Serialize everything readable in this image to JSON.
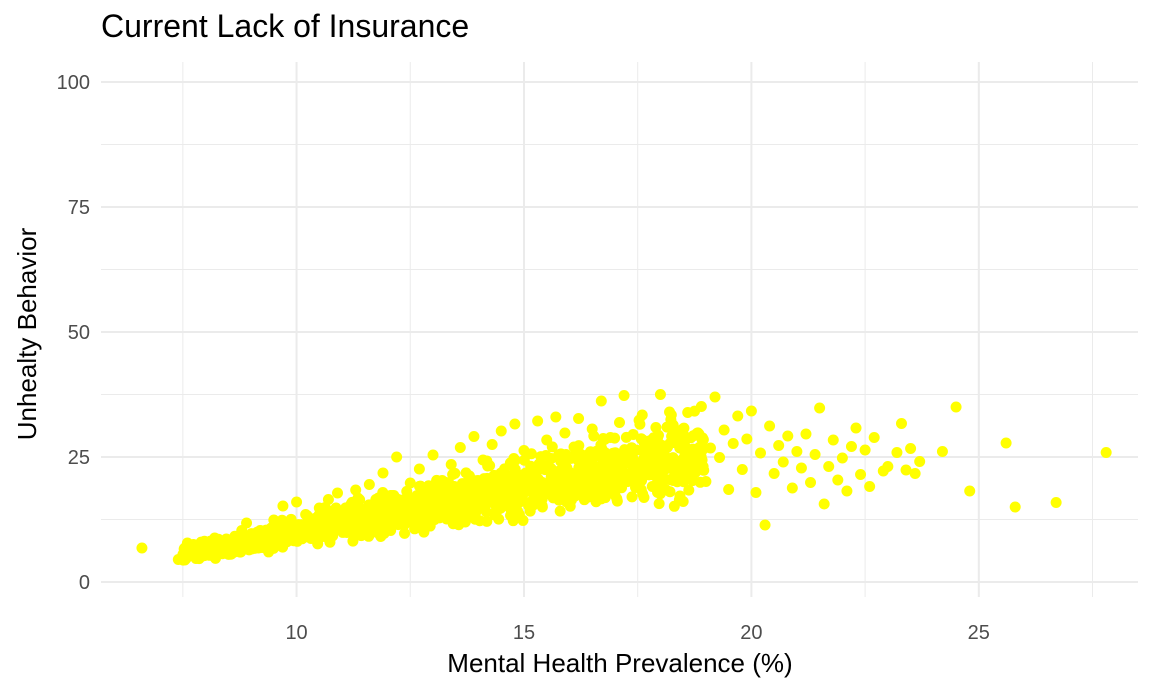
{
  "chart_data": {
    "type": "scatter",
    "title": "Current Lack of Insurance",
    "xlabel": "Mental Health Prevalence (%)",
    "ylabel": "Unhealty Behavior",
    "xlim": [
      5.7,
      28.5
    ],
    "ylim": [
      -3,
      104
    ],
    "x_ticks": [
      10,
      15,
      20,
      25
    ],
    "y_ticks": [
      0,
      25,
      50,
      75,
      100
    ],
    "grid": true,
    "legend": "none",
    "point_color": "#FFFF00",
    "grid_color": "#EBEBEB",
    "points": [
      [
        6.6,
        6.8
      ],
      [
        7.4,
        4.5
      ],
      [
        7.5,
        5.0
      ],
      [
        7.6,
        7.8
      ],
      [
        7.7,
        6.0
      ],
      [
        7.8,
        5.2
      ],
      [
        7.9,
        7.0
      ],
      [
        8.0,
        6.5
      ],
      [
        8.1,
        5.5
      ],
      [
        8.2,
        8.8
      ],
      [
        8.3,
        6.2
      ],
      [
        8.4,
        7.4
      ],
      [
        8.5,
        5.9
      ],
      [
        8.6,
        8.2
      ],
      [
        8.7,
        6.8
      ],
      [
        8.8,
        7.7
      ],
      [
        8.9,
        11.8
      ],
      [
        9.0,
        9.5
      ],
      [
        9.1,
        7.1
      ],
      [
        9.2,
        10.3
      ],
      [
        9.3,
        8.4
      ],
      [
        9.4,
        9.9
      ],
      [
        9.5,
        12.4
      ],
      [
        9.6,
        8.9
      ],
      [
        9.7,
        15.2
      ],
      [
        9.8,
        10.6
      ],
      [
        9.9,
        9.1
      ],
      [
        10.0,
        16.0
      ],
      [
        10.1,
        11.2
      ],
      [
        10.2,
        13.5
      ],
      [
        10.3,
        9.8
      ],
      [
        10.4,
        12.7
      ],
      [
        10.5,
        14.8
      ],
      [
        10.6,
        10.4
      ],
      [
        10.7,
        16.5
      ],
      [
        10.8,
        12.1
      ],
      [
        10.9,
        17.8
      ],
      [
        11.0,
        13.3
      ],
      [
        11.1,
        11.0
      ],
      [
        11.2,
        15.6
      ],
      [
        11.3,
        18.4
      ],
      [
        11.4,
        12.9
      ],
      [
        11.5,
        14.2
      ],
      [
        11.6,
        19.5
      ],
      [
        11.7,
        11.6
      ],
      [
        11.8,
        16.8
      ],
      [
        11.9,
        21.8
      ],
      [
        12.0,
        13.8
      ],
      [
        12.1,
        17.3
      ],
      [
        12.2,
        25.0
      ],
      [
        12.3,
        15.0
      ],
      [
        12.4,
        12.2
      ],
      [
        12.5,
        19.8
      ],
      [
        12.6,
        16.4
      ],
      [
        12.7,
        22.6
      ],
      [
        12.8,
        14.1
      ],
      [
        12.9,
        18.7
      ],
      [
        13.0,
        25.4
      ],
      [
        13.1,
        15.7
      ],
      [
        13.2,
        20.3
      ],
      [
        13.3,
        12.6
      ],
      [
        13.4,
        23.5
      ],
      [
        13.5,
        17.6
      ],
      [
        13.6,
        26.9
      ],
      [
        13.7,
        14.9
      ],
      [
        13.8,
        21.2
      ],
      [
        13.9,
        29.1
      ],
      [
        14.0,
        18.3
      ],
      [
        14.1,
        24.4
      ],
      [
        14.2,
        15.8
      ],
      [
        14.3,
        27.5
      ],
      [
        14.4,
        20.7
      ],
      [
        14.5,
        30.2
      ],
      [
        14.6,
        17.1
      ],
      [
        14.7,
        23.8
      ],
      [
        14.8,
        31.6
      ],
      [
        14.9,
        19.4
      ],
      [
        15.0,
        26.3
      ],
      [
        15.1,
        15.3
      ],
      [
        15.2,
        22.1
      ],
      [
        15.3,
        32.2
      ],
      [
        15.4,
        18.9
      ],
      [
        15.5,
        28.4
      ],
      [
        15.6,
        24.7
      ],
      [
        15.7,
        33.0
      ],
      [
        15.8,
        20.5
      ],
      [
        15.9,
        29.8
      ],
      [
        16.0,
        16.6
      ],
      [
        16.1,
        27.0
      ],
      [
        16.2,
        32.7
      ],
      [
        16.3,
        22.9
      ],
      [
        16.4,
        18.1
      ],
      [
        16.5,
        30.6
      ],
      [
        16.6,
        25.6
      ],
      [
        16.7,
        36.2
      ],
      [
        16.8,
        21.4
      ],
      [
        16.9,
        28.9
      ],
      [
        17.0,
        17.4
      ],
      [
        17.1,
        31.9
      ],
      [
        17.2,
        37.3
      ],
      [
        17.3,
        24.1
      ],
      [
        17.4,
        29.5
      ],
      [
        17.5,
        19.7
      ],
      [
        17.6,
        33.4
      ],
      [
        17.7,
        26.6
      ],
      [
        17.8,
        22.3
      ],
      [
        17.9,
        30.9
      ],
      [
        18.0,
        37.5
      ],
      [
        18.1,
        25.2
      ],
      [
        18.2,
        34.0
      ],
      [
        18.3,
        21.0
      ],
      [
        18.4,
        28.1
      ],
      [
        18.5,
        16.1
      ],
      [
        18.6,
        33.9
      ],
      [
        18.7,
        23.3
      ],
      [
        18.8,
        29.7
      ],
      [
        18.9,
        35.1
      ],
      [
        19.0,
        20.1
      ],
      [
        19.1,
        26.8
      ],
      [
        19.2,
        37.0
      ],
      [
        19.3,
        24.9
      ],
      [
        19.4,
        30.4
      ],
      [
        19.5,
        18.5
      ],
      [
        19.6,
        27.7
      ],
      [
        19.7,
        33.2
      ],
      [
        19.8,
        22.5
      ],
      [
        19.9,
        28.6
      ],
      [
        20.0,
        34.2
      ],
      [
        20.1,
        17.9
      ],
      [
        20.2,
        25.8
      ],
      [
        20.3,
        11.4
      ],
      [
        20.4,
        31.2
      ],
      [
        20.5,
        21.7
      ],
      [
        20.6,
        27.3
      ],
      [
        20.7,
        24.0
      ],
      [
        20.8,
        29.2
      ],
      [
        20.9,
        18.8
      ],
      [
        21.0,
        26.1
      ],
      [
        21.1,
        22.8
      ],
      [
        21.2,
        29.6
      ],
      [
        21.3,
        19.9
      ],
      [
        21.4,
        25.5
      ],
      [
        21.5,
        34.8
      ],
      [
        21.6,
        15.6
      ],
      [
        21.7,
        23.1
      ],
      [
        21.8,
        28.4
      ],
      [
        21.9,
        20.4
      ],
      [
        22.0,
        24.8
      ],
      [
        22.1,
        18.2
      ],
      [
        22.2,
        27.1
      ],
      [
        22.3,
        30.8
      ],
      [
        22.4,
        21.5
      ],
      [
        22.5,
        26.4
      ],
      [
        22.6,
        19.1
      ],
      [
        22.7,
        28.9
      ],
      [
        22.9,
        22.2
      ],
      [
        23.0,
        23.1
      ],
      [
        23.2,
        25.9
      ],
      [
        23.3,
        31.7
      ],
      [
        23.4,
        22.4
      ],
      [
        23.5,
        26.7
      ],
      [
        23.6,
        21.7
      ],
      [
        23.7,
        24.1
      ],
      [
        24.2,
        26.1
      ],
      [
        24.5,
        35.0
      ],
      [
        24.8,
        18.2
      ],
      [
        25.6,
        27.8
      ],
      [
        25.8,
        15.0
      ],
      [
        26.7,
        15.9
      ],
      [
        27.8,
        25.9
      ]
    ]
  }
}
